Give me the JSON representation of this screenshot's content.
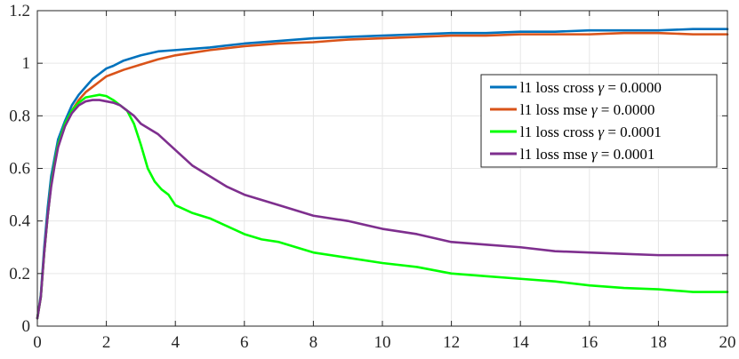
{
  "chart_data": {
    "type": "line",
    "title": "",
    "xlabel": "",
    "ylabel": "",
    "xlim": [
      0,
      20
    ],
    "ylim": [
      0,
      1.2
    ],
    "xticks": [
      "0",
      "2",
      "4",
      "6",
      "8",
      "10",
      "12",
      "14",
      "16",
      "18",
      "20"
    ],
    "yticks": [
      "0",
      "0.2",
      "0.4",
      "0.6",
      "0.8",
      "1",
      "1.2"
    ],
    "grid": true,
    "legend_position": "right",
    "series": [
      {
        "name_text": "l1 loss cross ",
        "name_symbol": "γ",
        "name_value": " = 0.0000",
        "color": "#0072BD",
        "x": [
          0,
          0.1,
          0.2,
          0.3,
          0.4,
          0.5,
          0.6,
          0.8,
          1.0,
          1.2,
          1.4,
          1.6,
          1.8,
          2.0,
          2.2,
          2.5,
          3.0,
          3.5,
          4.0,
          4.5,
          5.0,
          6.0,
          7.0,
          8.0,
          9.0,
          10.0,
          11.0,
          12.0,
          13.0,
          14.0,
          15.0,
          16.0,
          17.0,
          18.0,
          19.0,
          20.0
        ],
        "y": [
          0.03,
          0.12,
          0.3,
          0.45,
          0.57,
          0.64,
          0.71,
          0.78,
          0.84,
          0.88,
          0.91,
          0.94,
          0.96,
          0.98,
          0.99,
          1.01,
          1.03,
          1.045,
          1.05,
          1.055,
          1.06,
          1.075,
          1.085,
          1.095,
          1.1,
          1.105,
          1.11,
          1.115,
          1.115,
          1.12,
          1.12,
          1.125,
          1.125,
          1.125,
          1.13,
          1.13
        ]
      },
      {
        "name_text": "l1 loss mse ",
        "name_symbol": "γ",
        "name_value": " = 0.0000",
        "color": "#D95319",
        "x": [
          0,
          0.1,
          0.2,
          0.3,
          0.4,
          0.5,
          0.6,
          0.8,
          1.0,
          1.2,
          1.4,
          1.6,
          1.8,
          2.0,
          2.2,
          2.5,
          3.0,
          3.5,
          4.0,
          4.5,
          5.0,
          6.0,
          7.0,
          8.0,
          9.0,
          10.0,
          11.0,
          12.0,
          13.0,
          14.0,
          15.0,
          16.0,
          17.0,
          18.0,
          19.0,
          20.0
        ],
        "y": [
          0.03,
          0.11,
          0.28,
          0.42,
          0.54,
          0.62,
          0.69,
          0.76,
          0.82,
          0.86,
          0.89,
          0.91,
          0.93,
          0.95,
          0.96,
          0.975,
          0.995,
          1.015,
          1.03,
          1.04,
          1.05,
          1.065,
          1.075,
          1.08,
          1.09,
          1.095,
          1.1,
          1.105,
          1.105,
          1.11,
          1.11,
          1.11,
          1.115,
          1.115,
          1.11,
          1.11
        ]
      },
      {
        "name_text": "l1 loss cross ",
        "name_symbol": "γ",
        "name_value": " = 0.0001",
        "color": "#00FF00",
        "x": [
          0,
          0.1,
          0.2,
          0.3,
          0.4,
          0.5,
          0.6,
          0.8,
          1.0,
          1.2,
          1.4,
          1.6,
          1.8,
          2.0,
          2.2,
          2.4,
          2.6,
          2.8,
          3.0,
          3.2,
          3.4,
          3.6,
          3.8,
          4.0,
          4.5,
          5.0,
          5.5,
          6.0,
          6.5,
          7.0,
          8.0,
          9.0,
          10.0,
          11.0,
          12.0,
          13.0,
          14.0,
          15.0,
          16.0,
          17.0,
          18.0,
          19.0,
          20.0
        ],
        "y": [
          0.03,
          0.11,
          0.28,
          0.42,
          0.54,
          0.62,
          0.69,
          0.77,
          0.82,
          0.85,
          0.87,
          0.875,
          0.88,
          0.875,
          0.86,
          0.84,
          0.82,
          0.77,
          0.69,
          0.6,
          0.55,
          0.52,
          0.5,
          0.46,
          0.43,
          0.41,
          0.38,
          0.35,
          0.33,
          0.32,
          0.28,
          0.26,
          0.24,
          0.225,
          0.2,
          0.19,
          0.18,
          0.17,
          0.155,
          0.145,
          0.14,
          0.13,
          0.13
        ]
      },
      {
        "name_text": "l1 loss mse ",
        "name_symbol": "γ",
        "name_value": " = 0.0001",
        "color": "#7E2F8E",
        "x": [
          0,
          0.1,
          0.2,
          0.3,
          0.4,
          0.5,
          0.6,
          0.8,
          1.0,
          1.2,
          1.4,
          1.6,
          1.8,
          2.0,
          2.2,
          2.4,
          2.6,
          2.8,
          3.0,
          3.5,
          4.0,
          4.5,
          5.0,
          5.5,
          6.0,
          6.5,
          7.0,
          8.0,
          9.0,
          10.0,
          11.0,
          12.0,
          13.0,
          14.0,
          15.0,
          16.0,
          17.0,
          18.0,
          19.0,
          20.0
        ],
        "y": [
          0.03,
          0.11,
          0.28,
          0.42,
          0.53,
          0.61,
          0.68,
          0.76,
          0.81,
          0.84,
          0.855,
          0.86,
          0.86,
          0.855,
          0.85,
          0.84,
          0.82,
          0.8,
          0.77,
          0.73,
          0.67,
          0.61,
          0.57,
          0.53,
          0.5,
          0.48,
          0.46,
          0.42,
          0.4,
          0.37,
          0.35,
          0.32,
          0.31,
          0.3,
          0.285,
          0.28,
          0.275,
          0.27,
          0.27,
          0.27
        ]
      }
    ]
  }
}
